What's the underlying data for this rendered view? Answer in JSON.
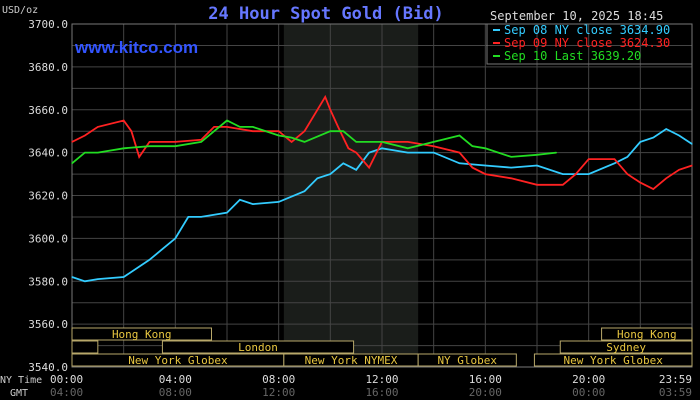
{
  "chart_data": {
    "type": "line",
    "title": "24 Hour Spot Gold (Bid)",
    "brand": "www.kitco.com",
    "timestamp": "September 10, 2025 18:45",
    "ylabel": "USD/oz",
    "ylim": [
      3540,
      3700
    ],
    "yticks": [
      "3700.0",
      "3680.0",
      "3660.0",
      "3640.0",
      "3620.0",
      "3600.0",
      "3580.0",
      "3560.0",
      "3540.0"
    ],
    "ytick_values": [
      3700,
      3680,
      3660,
      3640,
      3620,
      3600,
      3580,
      3560,
      3540
    ],
    "xlim_hours": [
      0,
      24
    ],
    "x_row_labels": {
      "ny": "NY Time",
      "gmt": "GMT"
    },
    "xticks_ny": [
      "00:00",
      "04:00",
      "08:00",
      "12:00",
      "16:00",
      "20:00",
      "23:59"
    ],
    "xticks_gmt": [
      "04:00",
      "08:00",
      "12:00",
      "16:00",
      "20:00",
      "00:00",
      "03:59"
    ],
    "xtick_hours": [
      0,
      4,
      8,
      12,
      16,
      20,
      24
    ],
    "grid": true,
    "legend_position": "top-right",
    "series": [
      {
        "name": "Sep 08 NY close 3634.90",
        "color": "#33ccff",
        "x": [
          0,
          0.5,
          1,
          2,
          3,
          3.5,
          4,
          4.5,
          5,
          6,
          6.5,
          7,
          8,
          9,
          9.5,
          10,
          10.5,
          11,
          11.5,
          12,
          13,
          14,
          15,
          16,
          17,
          18,
          19,
          20,
          21,
          21.5,
          22,
          22.5,
          23,
          23.5,
          24
        ],
        "y": [
          3582,
          3580,
          3581,
          3582,
          3590,
          3595,
          3600,
          3610,
          3610,
          3612,
          3618,
          3616,
          3617,
          3622,
          3628,
          3630,
          3635,
          3632,
          3640,
          3642,
          3640,
          3640,
          3635,
          3634,
          3633,
          3634,
          3630,
          3630,
          3635,
          3638,
          3645,
          3647,
          3651,
          3648,
          3644
        ]
      },
      {
        "name": "Sep 09 NY close 3624.30",
        "color": "#ff2222",
        "x": [
          0,
          0.5,
          1,
          2,
          2.3,
          2.6,
          3,
          4,
          5,
          5.5,
          6,
          7,
          8,
          8.5,
          9,
          9.5,
          9.8,
          10,
          10.3,
          10.7,
          11,
          11.5,
          12,
          13,
          14,
          15,
          15.5,
          16,
          17,
          18,
          19,
          19.5,
          20,
          21,
          21.5,
          22,
          22.5,
          23,
          23.5,
          24
        ],
        "y": [
          3645,
          3648,
          3652,
          3655,
          3650,
          3638,
          3645,
          3645,
          3646,
          3652,
          3652,
          3650,
          3650,
          3645,
          3650,
          3660,
          3666,
          3660,
          3652,
          3642,
          3640,
          3633,
          3645,
          3645,
          3643,
          3640,
          3633,
          3630,
          3628,
          3625,
          3625,
          3630,
          3637,
          3637,
          3630,
          3626,
          3623,
          3628,
          3632,
          3634
        ]
      },
      {
        "name": "Sep 10 Last 3639.20",
        "color": "#22dd22",
        "x": [
          0,
          0.5,
          1,
          2,
          3,
          4,
          5,
          5.5,
          6,
          6.5,
          7,
          8,
          8.5,
          9,
          10,
          10.5,
          11,
          12,
          13,
          14,
          15,
          15.5,
          16,
          17,
          18,
          18.75
        ],
        "y": [
          3635,
          3640,
          3640,
          3642,
          3643,
          3643,
          3645,
          3650,
          3655,
          3652,
          3652,
          3648,
          3647,
          3645,
          3650,
          3650,
          3645,
          3645,
          3642,
          3645,
          3648,
          3643,
          3642,
          3638,
          3639,
          3640
        ]
      }
    ],
    "sessions": [
      {
        "label": "Hong Kong",
        "row": 0,
        "start": 0,
        "end": 5.4
      },
      {
        "label": "Hong Kong",
        "row": 0,
        "start": 20.5,
        "end": 24
      },
      {
        "label": "",
        "row": 1,
        "start": 0,
        "end": 1
      },
      {
        "label": "London",
        "row": 1,
        "start": 3.5,
        "end": 10.9
      },
      {
        "label": "Sydney",
        "row": 1,
        "start": 18.9,
        "end": 24
      },
      {
        "label": "New York Globex",
        "row": 2,
        "start": 0,
        "end": 8.2
      },
      {
        "label": "New York NYMEX",
        "row": 2,
        "start": 8.2,
        "end": 13.4
      },
      {
        "label": "NY Globex",
        "row": 2,
        "start": 13.4,
        "end": 17.2
      },
      {
        "label": "New York Globex",
        "row": 2,
        "start": 17.9,
        "end": 24
      }
    ],
    "shaded_hours": [
      8.2,
      13.4
    ]
  }
}
